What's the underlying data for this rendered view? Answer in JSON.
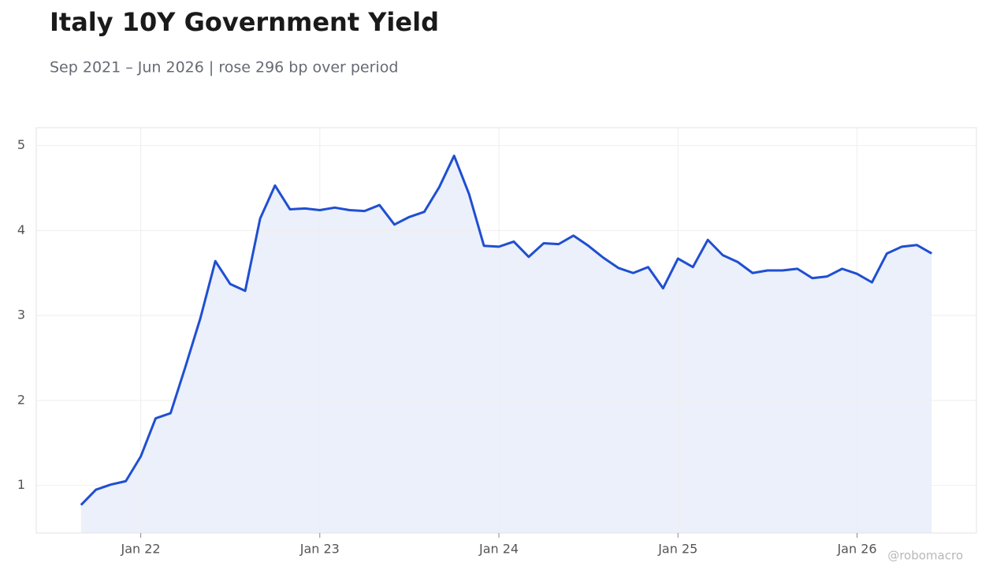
{
  "chart_data": {
    "type": "line",
    "title": "Italy 10Y Government Yield",
    "subtitle": "Sep 2021 – Jun 2026 | rose 296 bp over period",
    "watermark": "@robomacro",
    "x": [
      "2021-09",
      "2021-10",
      "2021-11",
      "2021-12",
      "2022-01",
      "2022-02",
      "2022-03",
      "2022-04",
      "2022-05",
      "2022-06",
      "2022-07",
      "2022-08",
      "2022-09",
      "2022-10",
      "2022-11",
      "2022-12",
      "2023-01",
      "2023-02",
      "2023-03",
      "2023-04",
      "2023-05",
      "2023-06",
      "2023-07",
      "2023-08",
      "2023-09",
      "2023-10",
      "2023-11",
      "2023-12",
      "2024-01",
      "2024-02",
      "2024-03",
      "2024-04",
      "2024-05",
      "2024-06",
      "2024-07",
      "2024-08",
      "2024-09",
      "2024-10",
      "2024-11",
      "2024-12",
      "2025-01",
      "2025-02",
      "2025-03",
      "2025-04",
      "2025-05",
      "2025-06",
      "2025-07",
      "2025-08",
      "2025-09",
      "2025-10",
      "2025-11",
      "2025-12",
      "2026-01",
      "2026-02",
      "2026-03",
      "2026-04",
      "2026-05",
      "2026-06"
    ],
    "series": [
      {
        "name": "Italy 10Y",
        "color": "#1f4fd1",
        "fill": "#ebf0fb",
        "values": [
          0.77,
          0.95,
          1.01,
          1.05,
          1.34,
          1.79,
          1.85,
          2.4,
          2.97,
          3.64,
          3.37,
          3.29,
          4.14,
          4.53,
          4.25,
          4.26,
          4.24,
          4.27,
          4.24,
          4.23,
          4.3,
          4.07,
          4.16,
          4.22,
          4.51,
          4.88,
          4.43,
          3.82,
          3.81,
          3.87,
          3.69,
          3.85,
          3.84,
          3.94,
          3.82,
          3.68,
          3.56,
          3.5,
          3.57,
          3.32,
          3.67,
          3.57,
          3.89,
          3.71,
          3.63,
          3.5,
          3.53,
          3.53,
          3.55,
          3.44,
          3.46,
          3.55,
          3.49,
          3.39,
          3.73,
          3.81,
          3.83,
          3.73
        ]
      }
    ],
    "xlim": [
      "2021-06",
      "2026-09"
    ],
    "xticks": [
      {
        "value": "2022-01",
        "label": "Jan 22"
      },
      {
        "value": "2023-01",
        "label": "Jan 23"
      },
      {
        "value": "2024-01",
        "label": "Jan 24"
      },
      {
        "value": "2025-01",
        "label": "Jan 25"
      },
      {
        "value": "2026-01",
        "label": "Jan 26"
      }
    ],
    "ylim": [
      0.44,
      5.21
    ],
    "yticks": [
      1,
      2,
      3,
      4,
      5
    ],
    "grid": true
  }
}
